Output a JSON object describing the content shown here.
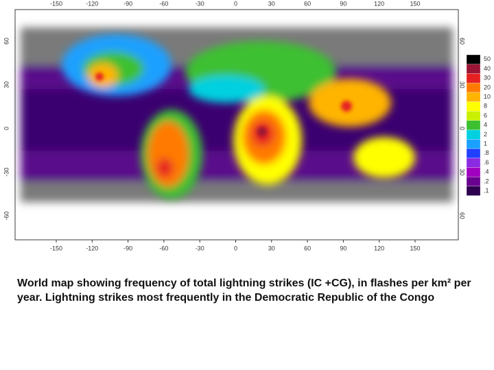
{
  "map": {
    "lon_ticks": [
      -150,
      -120,
      -90,
      -60,
      -30,
      0,
      30,
      60,
      90,
      120,
      150
    ],
    "lat_ticks_left": [
      60,
      30,
      0,
      -30,
      -60
    ],
    "lat_ticks_right": [
      "60",
      "30",
      "0",
      "30",
      "60"
    ],
    "legend": {
      "labels": [
        "50",
        "40",
        "30",
        "20",
        "10",
        "8",
        "6",
        "4",
        "2",
        "1",
        ".8",
        ".6",
        ".4",
        ".2",
        ".1"
      ],
      "colors": [
        "#000000",
        "#9b1535",
        "#e52020",
        "#ff7a00",
        "#ffb400",
        "#ffff00",
        "#c8f000",
        "#3cc030",
        "#00d0e0",
        "#1aa0ff",
        "#2040ff",
        "#8a2be2",
        "#a000c0",
        "#6a0090",
        "#2e0050"
      ]
    }
  },
  "caption": "World map showing frequency of total lightning strikes (IC +CG), in flashes per km² per year. Lightning strikes most frequently in the Democratic Republic of the Congo"
}
